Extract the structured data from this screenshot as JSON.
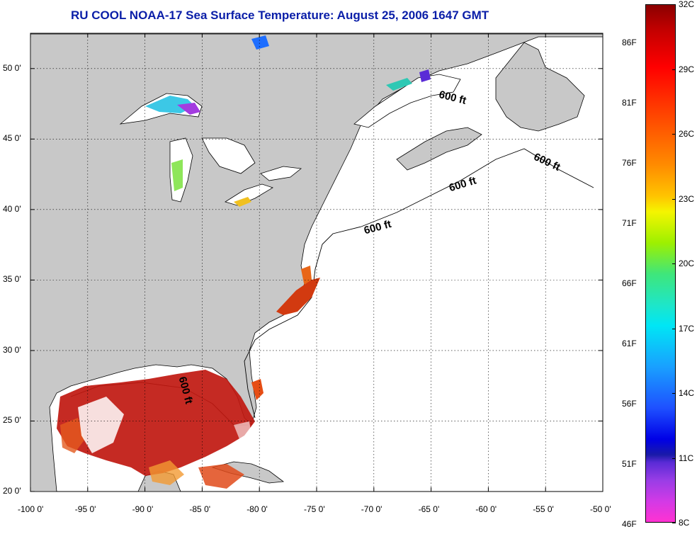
{
  "title": "RU COOL  NOAA-17  Sea Surface Temperature:  August 25, 2006 1647 GMT",
  "map": {
    "projection": "equirectangular",
    "lon_range": [
      -100,
      -50
    ],
    "lat_range": [
      20,
      52.5
    ],
    "grid": "dotted",
    "colors": {
      "land": "#c8c8c8",
      "ocean": "#ffffff",
      "coast": "#000000",
      "title": "#0a1ea8"
    }
  },
  "lon_ticks": [
    "-100 0'",
    "-95 0'",
    "-90 0'",
    "-85 0'",
    "-80 0'",
    "-75 0'",
    "-70 0'",
    "-65 0'",
    "-60 0'",
    "-55 0'",
    "-50 0'"
  ],
  "lat_ticks": [
    "20 0'",
    "25 0'",
    "30 0'",
    "35 0'",
    "40 0'",
    "45 0'",
    "50 0'"
  ],
  "contour_labels": [
    "600 ft",
    "600 ft",
    "600 ft",
    "600 ft",
    "600 ft"
  ],
  "colorbar": {
    "celsius_labels": [
      "32C",
      "29C",
      "26C",
      "23C",
      "20C",
      "17C",
      "14C",
      "11C",
      "8C"
    ],
    "fahrenheit_labels": [
      "86F",
      "81F",
      "76F",
      "71F",
      "66F",
      "61F",
      "56F",
      "51F",
      "46F"
    ]
  }
}
